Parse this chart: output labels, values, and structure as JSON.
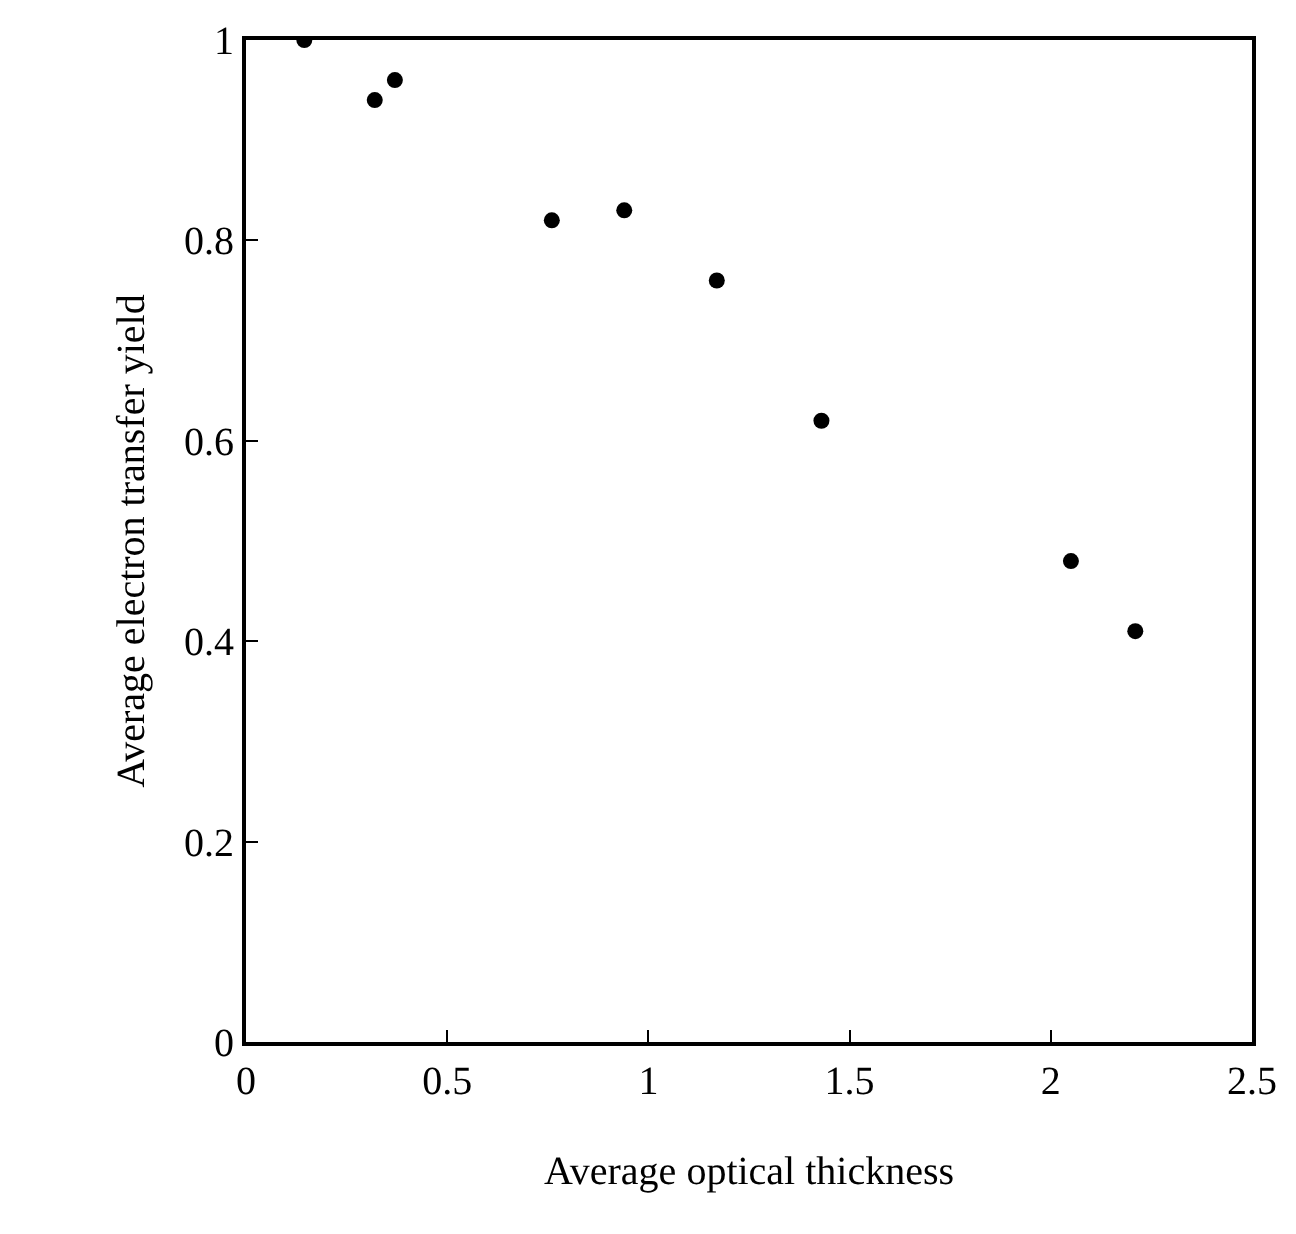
{
  "chart_data": {
    "type": "scatter",
    "xlabel": "Average optical thickness",
    "ylabel": "Average electron transfer yield",
    "x": [
      0.145,
      0.32,
      0.37,
      0.76,
      0.94,
      1.17,
      1.43,
      2.05,
      2.21
    ],
    "values": [
      1.0,
      0.94,
      0.96,
      0.82,
      0.83,
      0.76,
      0.62,
      0.48,
      0.41
    ],
    "color": "#000000",
    "marker": "circle",
    "grid": false,
    "legend": false,
    "xlim": [
      0,
      2.5
    ],
    "xticks": [
      0,
      0.5,
      1,
      1.5,
      2,
      2.5
    ],
    "ylim": [
      0,
      1
    ],
    "yticks": [
      0,
      0.2,
      0.4,
      0.6,
      0.8,
      1
    ]
  }
}
